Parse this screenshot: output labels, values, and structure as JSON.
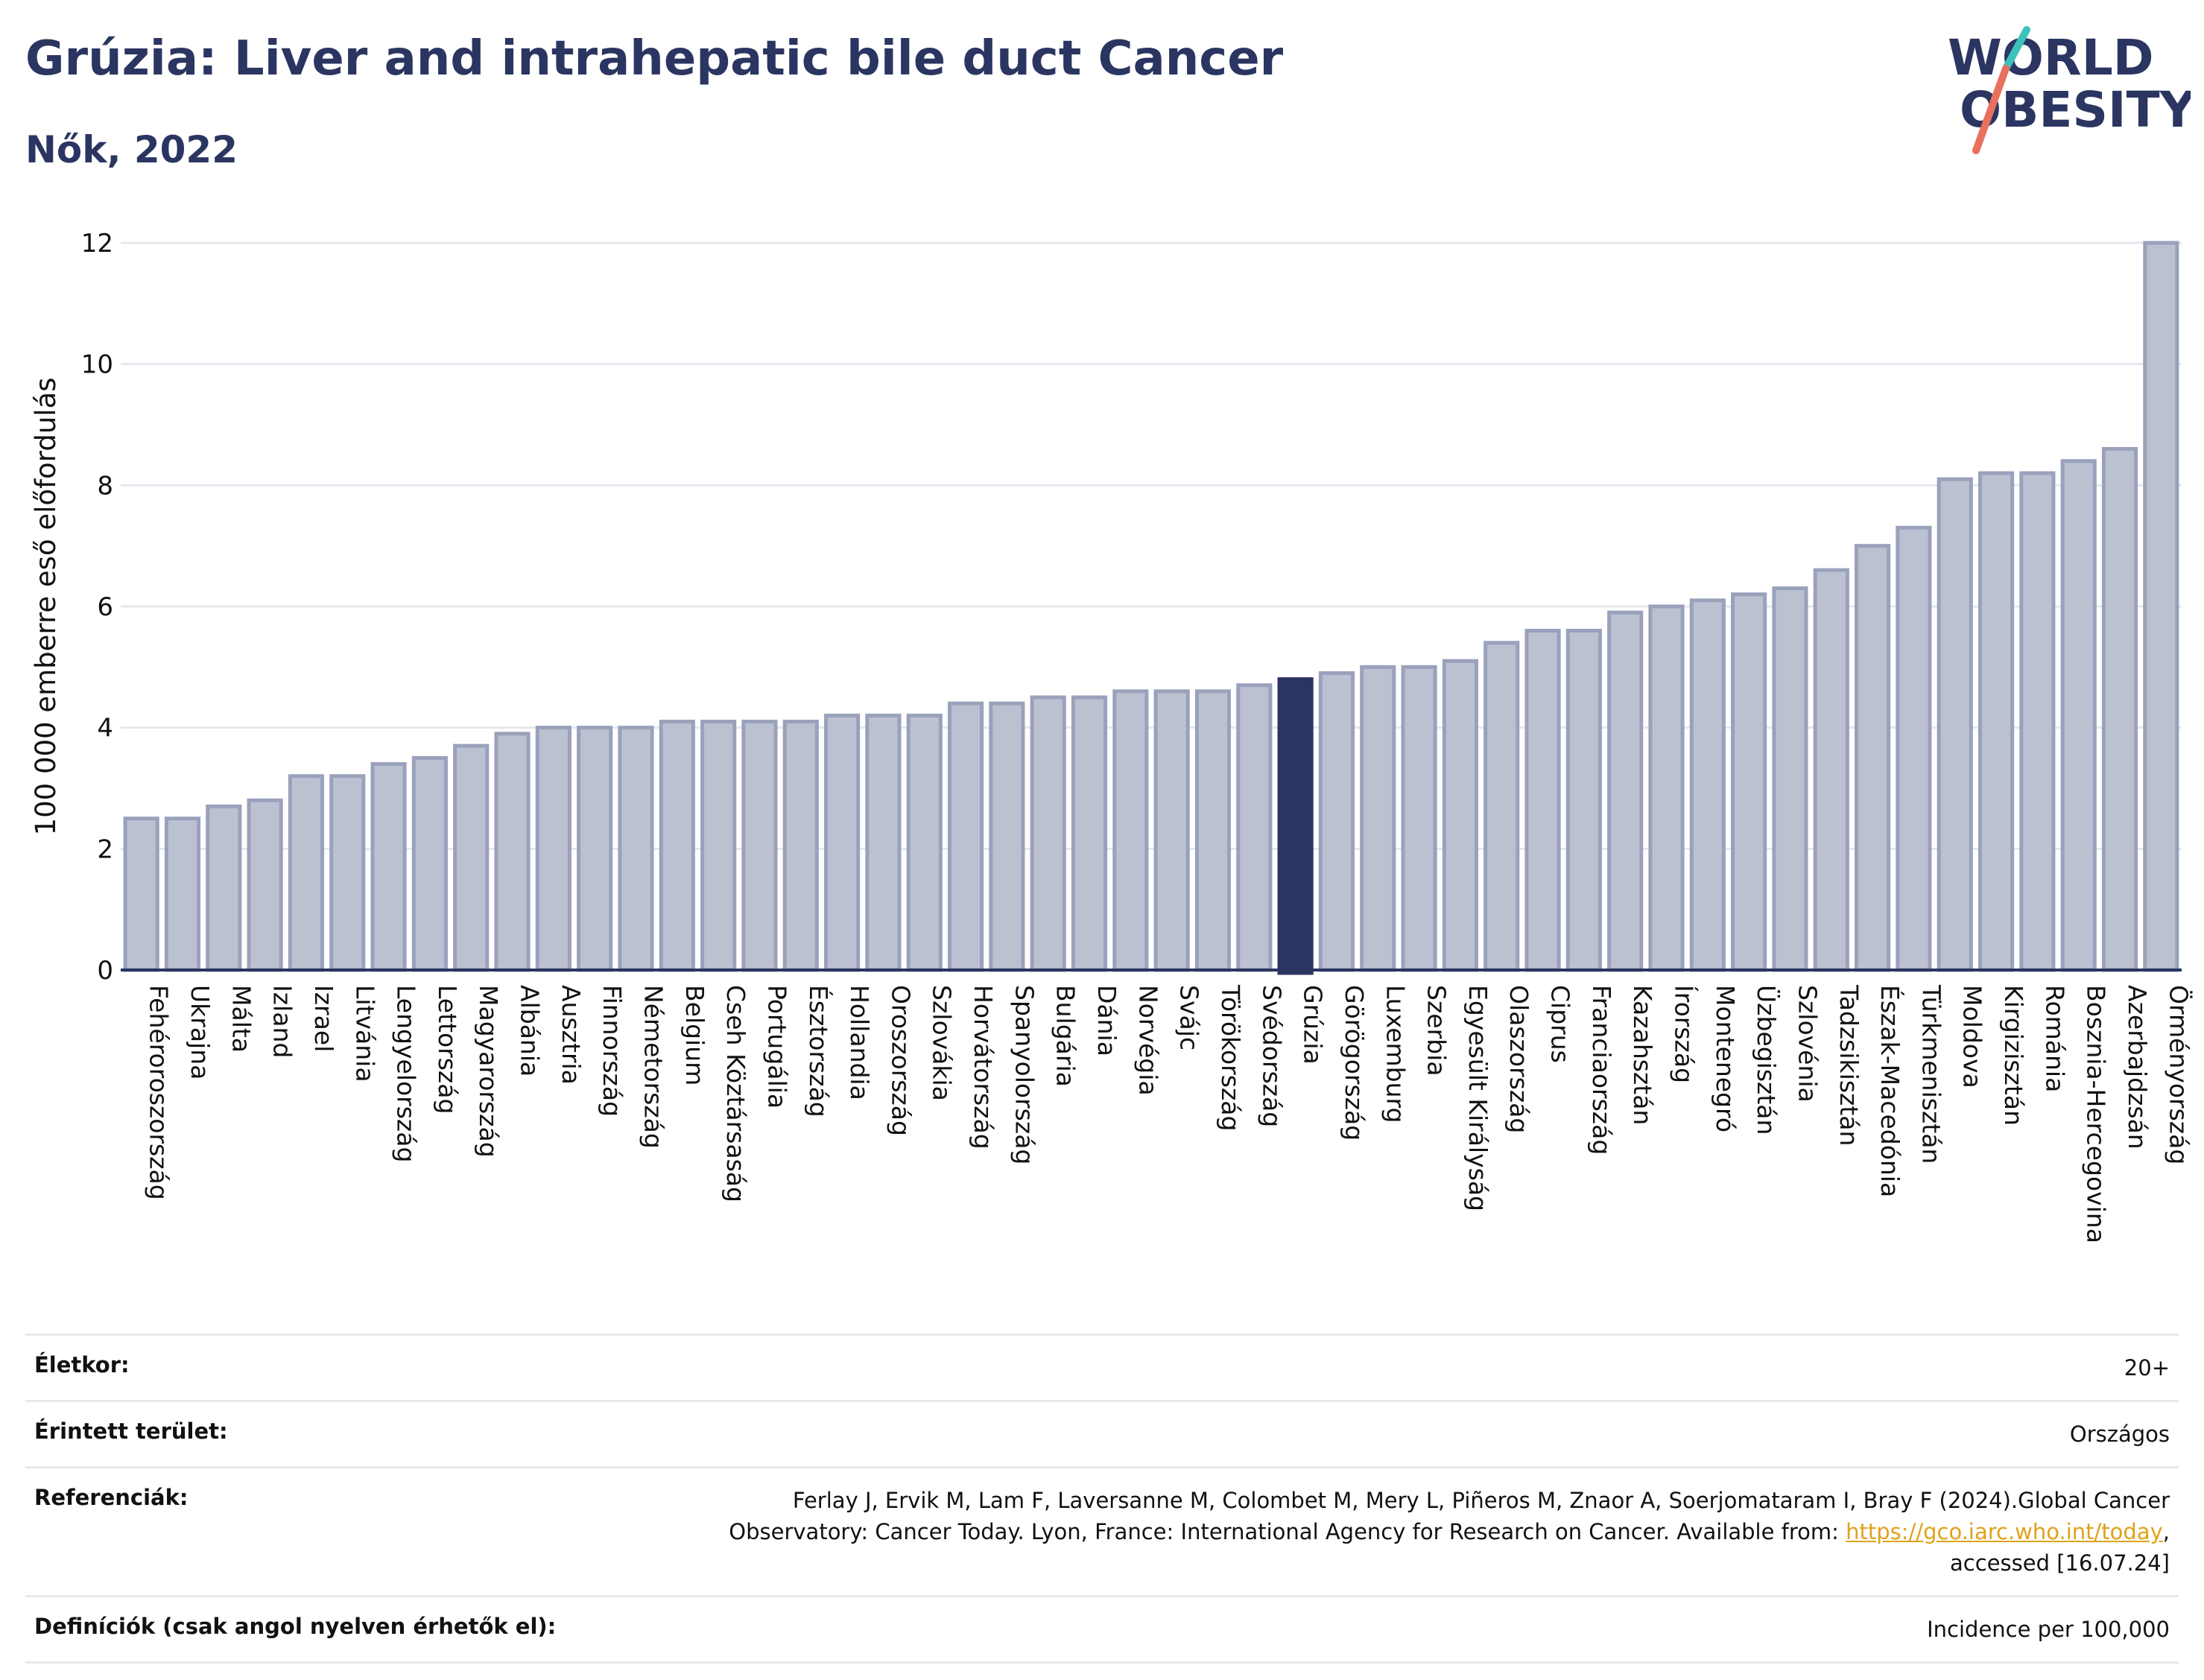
{
  "title": "Grúzia: Liver and intrahepatic bile duct Cancer",
  "subtitle": "Nők, 2022",
  "logo": {
    "line1": "WORLD",
    "line2": "OBESITY"
  },
  "colors": {
    "bar": "#bcc1d1",
    "bar_edge": "#9aa1bb",
    "highlight": "#2b3561",
    "title": "#2b3561",
    "link": "#e0a21b"
  },
  "chart_data": {
    "type": "bar",
    "ylabel": "100 000 emberre eső előfordulás",
    "ylim": [
      0,
      12
    ],
    "yticks": [
      0,
      2,
      4,
      6,
      8,
      10,
      12
    ],
    "grid": true,
    "highlight": "Grúzia",
    "categories": [
      "Fehéroroszország",
      "Ukrajna",
      "Málta",
      "Izland",
      "Izrael",
      "Litvánia",
      "Lengyelország",
      "Lettország",
      "Magyarország",
      "Albánia",
      "Ausztria",
      "Finnország",
      "Németország",
      "Belgium",
      "Cseh Köztársaság",
      "Portugália",
      "Észtország",
      "Hollandia",
      "Oroszország",
      "Szlovákia",
      "Horvátország",
      "Spanyolország",
      "Bulgária",
      "Dánia",
      "Norvégia",
      "Svájc",
      "Törökország",
      "Svédország",
      "Grúzia",
      "Görögország",
      "Luxemburg",
      "Szerbia",
      "Egyesült Királyság",
      "Olaszország",
      "Ciprus",
      "Franciaország",
      "Kazahsztán",
      "Írország",
      "Montenegró",
      "Üzbegisztán",
      "Szlovénia",
      "Tadzsikisztán",
      "Észak-Macedónia",
      "Türkmenisztán",
      "Moldova",
      "Kirgizisztán",
      "Románia",
      "Bosznia-Hercegovina",
      "Azerbajdzsán",
      "Örményország"
    ],
    "values": [
      2.5,
      2.5,
      2.7,
      2.8,
      3.2,
      3.2,
      3.4,
      3.5,
      3.7,
      3.9,
      4.0,
      4.0,
      4.0,
      4.1,
      4.1,
      4.1,
      4.1,
      4.2,
      4.2,
      4.2,
      4.4,
      4.4,
      4.5,
      4.5,
      4.6,
      4.6,
      4.6,
      4.7,
      4.8,
      4.9,
      5.0,
      5.0,
      5.1,
      5.4,
      5.6,
      5.6,
      5.9,
      6.0,
      6.1,
      6.2,
      6.3,
      6.6,
      7.0,
      7.3,
      8.1,
      8.2,
      8.2,
      8.4,
      8.6,
      12.0
    ]
  },
  "footer": {
    "age_label": "Életkor:",
    "age_value": "20+",
    "area_label": "Érintett terület:",
    "area_value": "Országos",
    "refs_label": "Referenciák:",
    "refs_text1": "Ferlay J, Ervik M, Lam F, Laversanne M, Colombet M, Mery L, Piñeros M, Znaor A, Soerjomataram I, Bray F (2024).Global Cancer Observatory: Cancer Today. Lyon, France: International Agency for Research on Cancer. Available from: ",
    "refs_link": "https://gco.iarc.who.int/today",
    "refs_text2": ", accessed [16.07.24]",
    "def_label": "Definíciók (csak angol nyelven érhetők el):",
    "def_value": "Incidence per 100,000"
  }
}
